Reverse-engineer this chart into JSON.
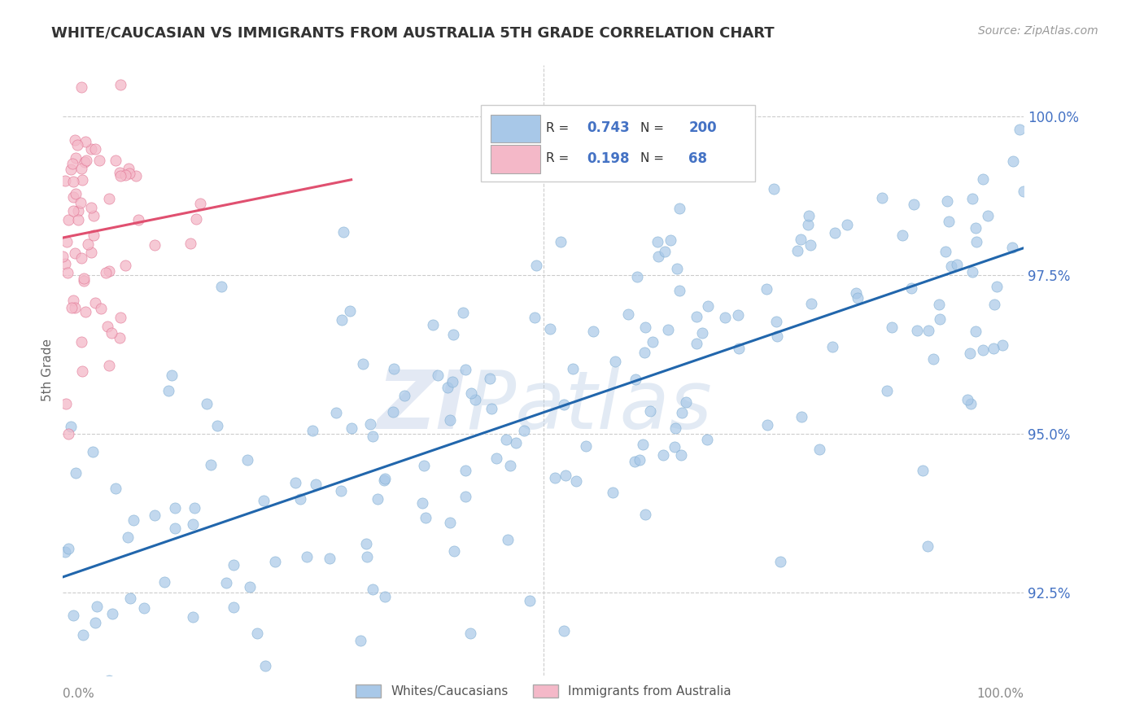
{
  "title": "WHITE/CAUCASIAN VS IMMIGRANTS FROM AUSTRALIA 5TH GRADE CORRELATION CHART",
  "source": "Source: ZipAtlas.com",
  "ylabel": "5th Grade",
  "watermark_zi": "ZI",
  "watermark_patlas": "Patlas",
  "blue_R": 0.743,
  "blue_N": 200,
  "pink_R": 0.198,
  "pink_N": 68,
  "blue_label": "Whites/Caucasians",
  "pink_label": "Immigrants from Australia",
  "blue_color": "#a8c8e8",
  "blue_edge_color": "#7aaad0",
  "blue_line_color": "#2166ac",
  "pink_color": "#f4b8c8",
  "pink_edge_color": "#e07090",
  "pink_line_color": "#e05070",
  "xmin": 0.0,
  "xmax": 1.0,
  "ymin": 0.912,
  "ymax": 1.008,
  "yticks": [
    0.925,
    0.95,
    0.975,
    1.0
  ],
  "ytick_labels": [
    "92.5%",
    "95.0%",
    "97.5%",
    "100.0%"
  ],
  "background_color": "#ffffff",
  "grid_color": "#cccccc",
  "title_color": "#333333",
  "axis_color": "#4472c4",
  "blue_seed": 12,
  "pink_seed": 5
}
